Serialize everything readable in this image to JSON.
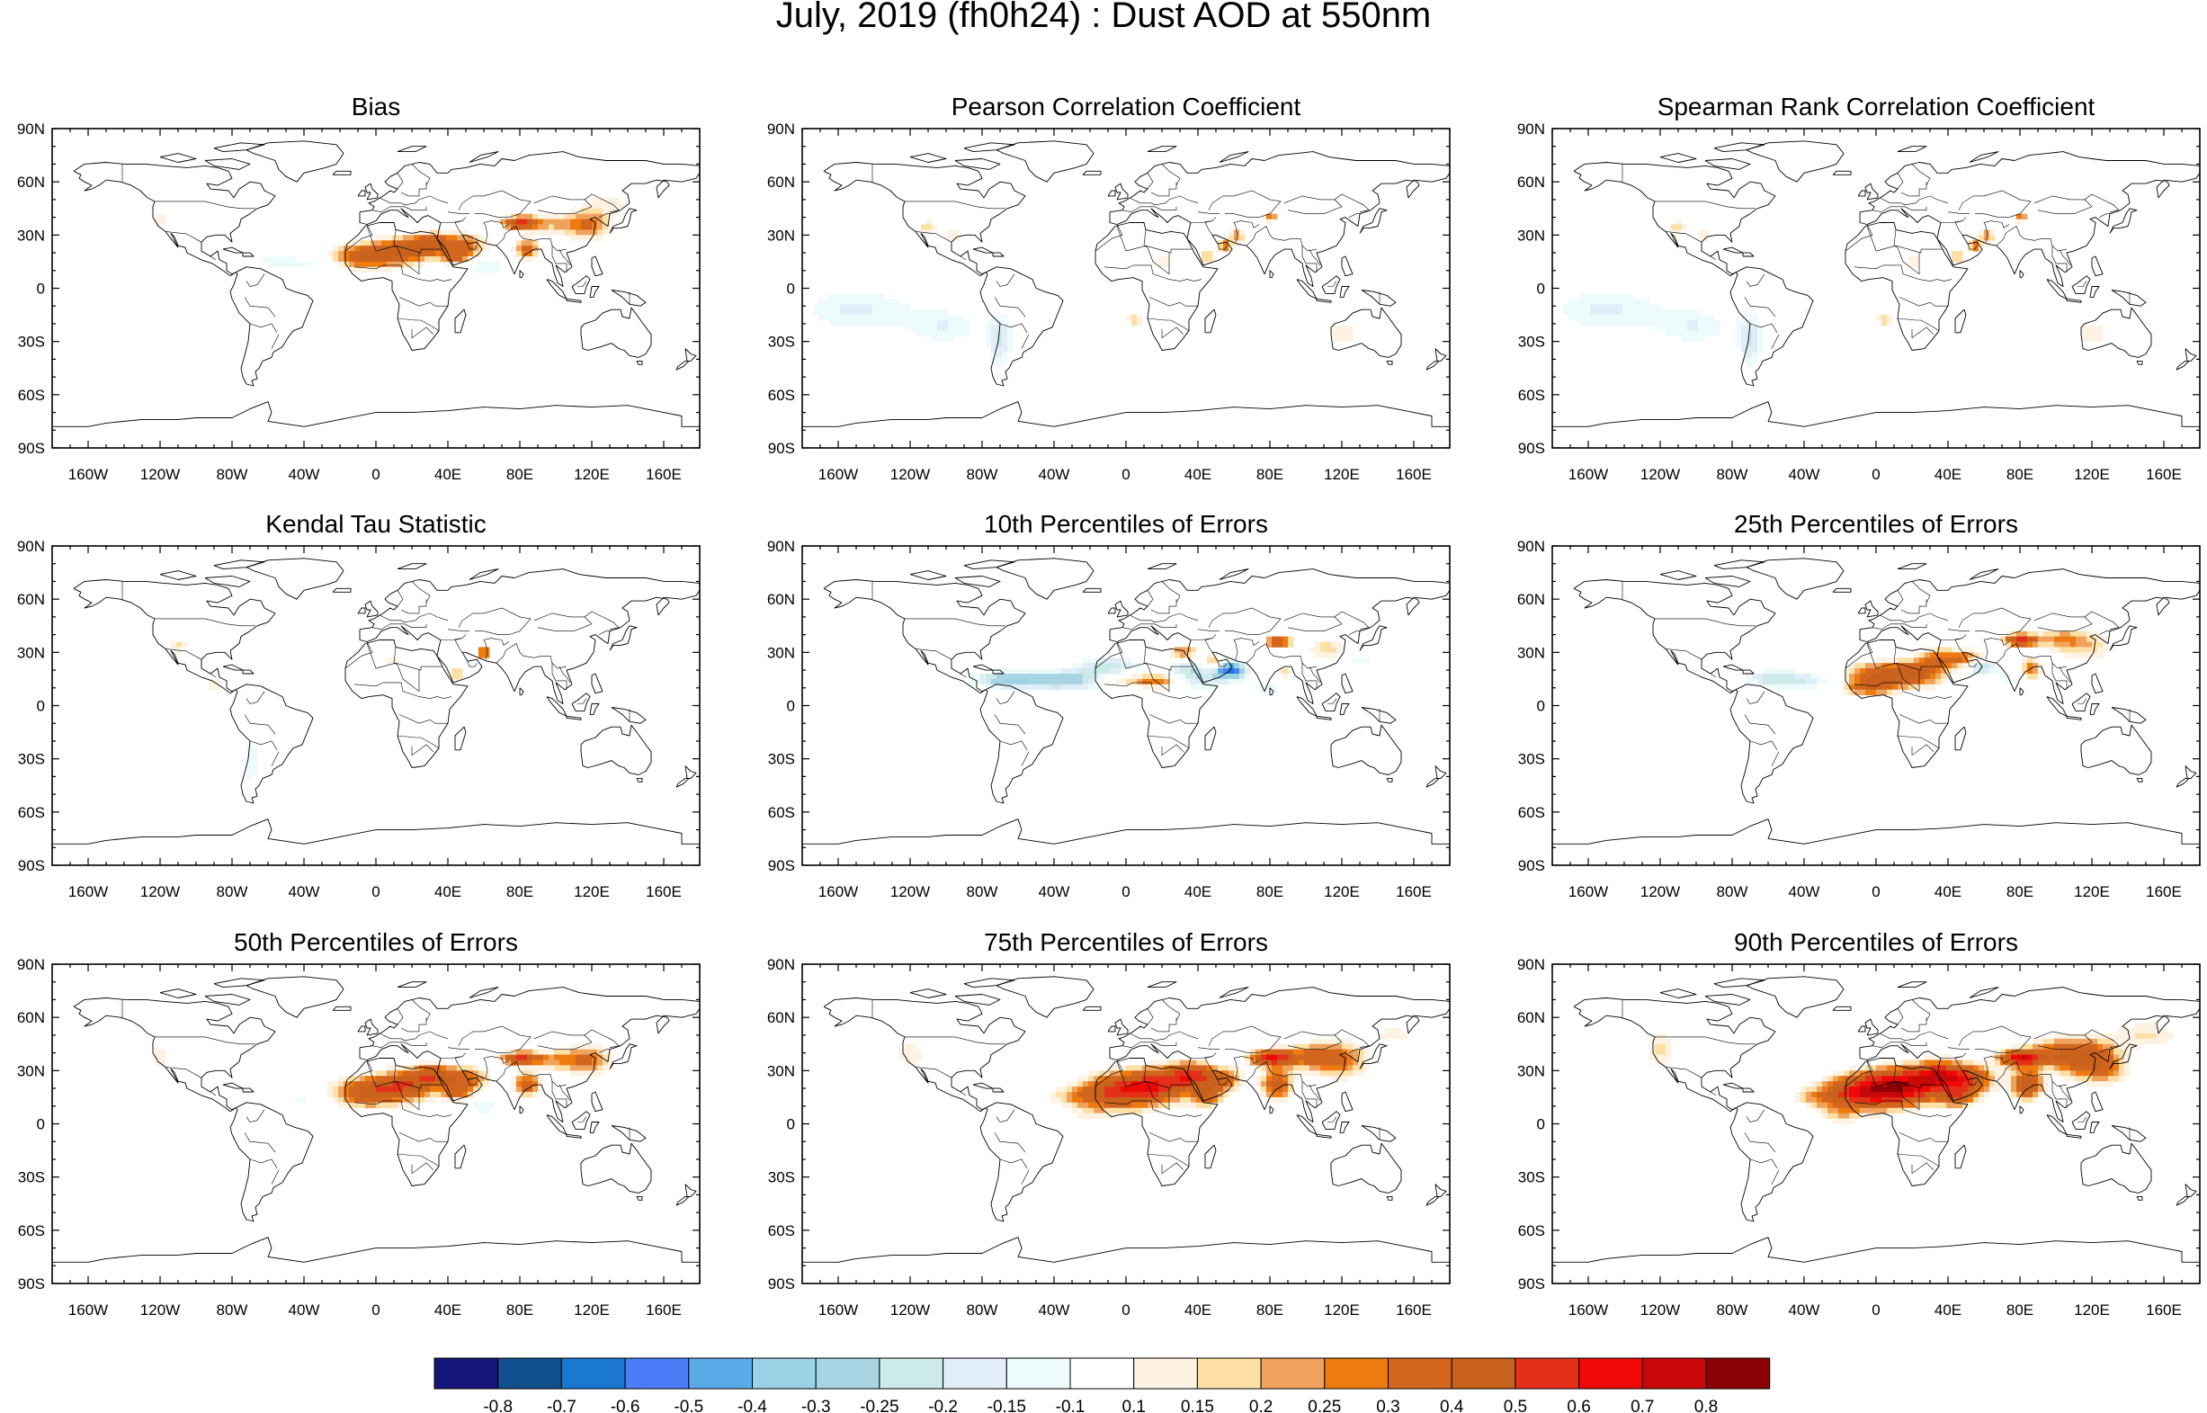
{
  "title": "July, 2019 (fh0h24) : Dust AOD at 550nm",
  "lat_labels": [
    "90N",
    "60N",
    "30N",
    "0",
    "30S",
    "60S",
    "90S"
  ],
  "lon_labels": [
    "160W",
    "120W",
    "80W",
    "40W",
    "0",
    "40E",
    "80E",
    "120E",
    "160E"
  ],
  "lon_values": [
    -160,
    -120,
    -80,
    -40,
    0,
    40,
    80,
    120,
    160
  ],
  "lat_values": [
    90,
    60,
    30,
    0,
    -30,
    -60,
    -90
  ],
  "panels": [
    {
      "title": "Bias",
      "pattern": "bias"
    },
    {
      "title": "Pearson Correlation Coefficient",
      "pattern": "corr"
    },
    {
      "title": "Spearman Rank Correlation Coefficient",
      "pattern": "corr"
    },
    {
      "title": "Kendal Tau Statistic",
      "pattern": "kendall"
    },
    {
      "title": "10th Percentiles of Errors",
      "pattern": "p10"
    },
    {
      "title": "25th Percentiles of Errors",
      "pattern": "p25"
    },
    {
      "title": "50th Percentiles of Errors",
      "pattern": "p50"
    },
    {
      "title": "75th Percentiles of Errors",
      "pattern": "p75"
    },
    {
      "title": "90th Percentiles of Errors",
      "pattern": "p90"
    }
  ],
  "colorbar": {
    "labels": [
      "-0.8",
      "-0.7",
      "-0.6",
      "-0.5",
      "-0.4",
      "-0.3",
      "-0.25",
      "-0.2",
      "-0.15",
      "-0.1",
      "0.1",
      "0.15",
      "0.2",
      "0.25",
      "0.3",
      "0.4",
      "0.5",
      "0.6",
      "0.7",
      "0.8"
    ],
    "colors": [
      "#15157a",
      "#13508f",
      "#1a78d3",
      "#4a7df7",
      "#5aaae8",
      "#9ad2e6",
      "#a8d4e3",
      "#cdeaea",
      "#e1edf9",
      "#eefbfc",
      "#ffffff",
      "#fef3e3",
      "#fedfa6",
      "#f0a35c",
      "#ee7b10",
      "#d2661e",
      "#c8611c",
      "#e43019",
      "#ee0808",
      "#c80808",
      "#8c0204"
    ]
  }
}
